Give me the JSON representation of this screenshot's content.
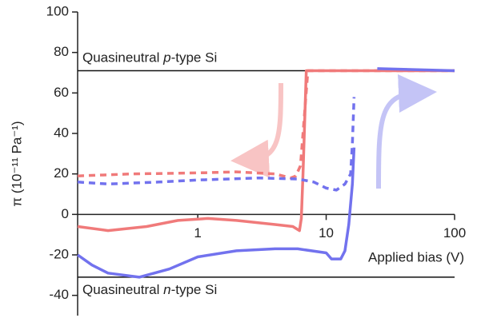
{
  "chart_data": {
    "type": "line",
    "y_label": "π (10⁻¹¹ Pa⁻¹)",
    "x_label": "Applied bias (V)",
    "xscale": "log",
    "xlim": [
      0.116,
      100
    ],
    "xticks": [
      1,
      10,
      100
    ],
    "ylim": [
      -50,
      100
    ],
    "yticks": [
      -40,
      -20,
      0,
      20,
      40,
      60,
      80,
      100
    ],
    "hlines": [
      {
        "y": 71,
        "text": [
          "Quasineutral ",
          "p",
          "-type Si"
        ]
      },
      {
        "y": -31,
        "text": [
          "Quasineutral ",
          "n",
          "-type Si"
        ]
      }
    ],
    "series": [
      {
        "color": "#f07a7a",
        "dash": false,
        "x": [
          0.116,
          0.2,
          0.4,
          0.7,
          1.2,
          2,
          4,
          5.5,
          6.2,
          6.4,
          6.6,
          7.0,
          100
        ],
        "values": [
          -6,
          -8,
          -6,
          -3,
          -2,
          -3,
          -5,
          -6,
          -8,
          -2,
          20,
          71,
          71
        ]
      },
      {
        "color": "#f07a7a",
        "dash": true,
        "x": [
          0.116,
          0.3,
          1,
          2,
          4,
          5.3,
          5.8,
          6.3,
          6.6,
          7.2,
          100
        ],
        "values": [
          19,
          20,
          20.5,
          21,
          20,
          18,
          19,
          24,
          40,
          71,
          71
        ]
      },
      {
        "color": "#7272ee",
        "dash": false,
        "x": [
          0.116,
          0.15,
          0.2,
          0.35,
          0.6,
          1,
          2,
          4,
          6,
          10,
          11,
          13,
          14,
          15,
          16,
          16.5,
          20,
          25,
          100
        ],
        "values": [
          -20,
          -25,
          -29,
          -31,
          -27,
          -21,
          -18,
          -17,
          -17,
          -19,
          -22,
          -22,
          -18,
          -5,
          15,
          33,
          null,
          72,
          71
        ]
      },
      {
        "color": "#7272ee",
        "dash": true,
        "x": [
          0.116,
          0.2,
          0.5,
          1,
          3,
          6,
          8,
          10,
          12,
          14,
          15.5,
          16,
          16.5
        ],
        "values": [
          16,
          15,
          16,
          17,
          18,
          17.5,
          16,
          13,
          12,
          15,
          20,
          35,
          58
        ]
      }
    ]
  }
}
